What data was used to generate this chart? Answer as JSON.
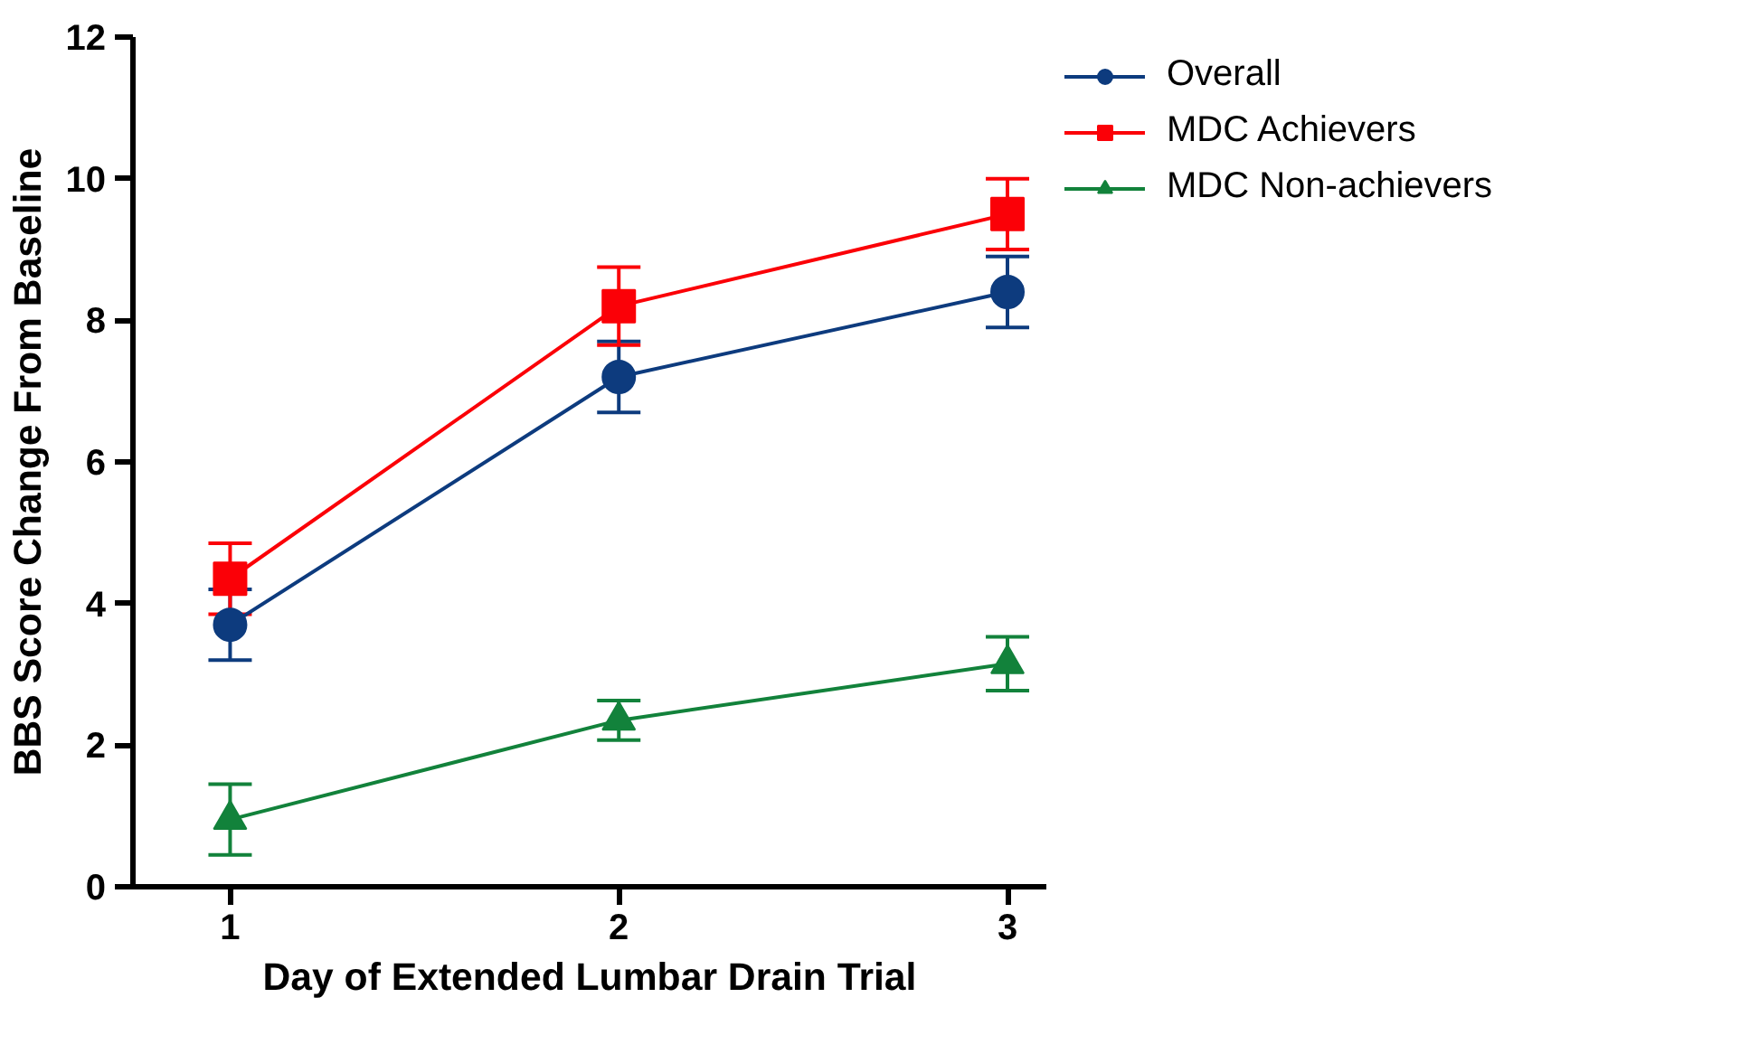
{
  "chart_data": {
    "type": "line",
    "xlabel": "Day of Extended Lumbar Drain Trial",
    "ylabel": "BBS Score Change From Baseline",
    "x": [
      1,
      2,
      3
    ],
    "xlim": [
      0.75,
      3.1
    ],
    "xticks": [
      1,
      2,
      3
    ],
    "ylim": [
      0,
      12
    ],
    "yticks": [
      0,
      2,
      4,
      6,
      8,
      10,
      12
    ],
    "grid": false,
    "legend": "top right",
    "series": [
      {
        "name": "Overall",
        "color": "#0d3b7e",
        "marker": "circle",
        "values": [
          3.7,
          7.2,
          8.4
        ],
        "errors": [
          0.5,
          0.5,
          0.5
        ]
      },
      {
        "name": "MDC Achievers",
        "color": "#fb0007",
        "marker": "square",
        "values": [
          4.35,
          8.2,
          9.5
        ],
        "errors": [
          0.5,
          0.55,
          0.5
        ]
      },
      {
        "name": "MDC Non-achievers",
        "color": "#12823b",
        "marker": "triangle",
        "values": [
          0.95,
          2.35,
          3.15
        ],
        "errors": [
          0.5,
          0.28,
          0.38
        ]
      }
    ]
  }
}
